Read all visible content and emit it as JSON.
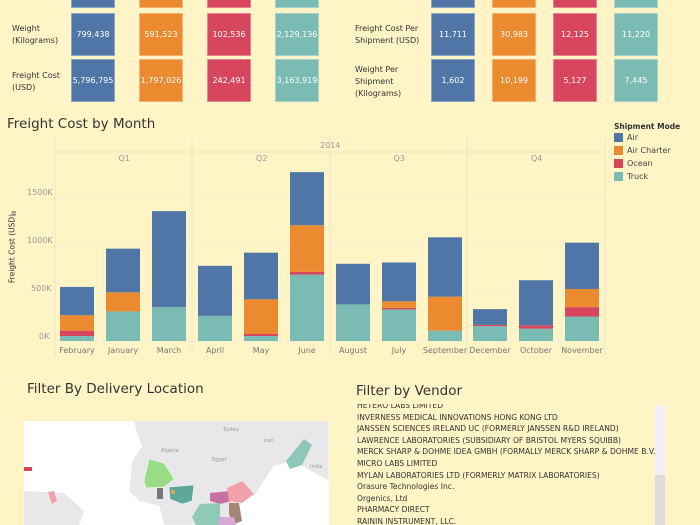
{
  "colors": {
    "Air": "#4F76A6",
    "Air Charter": "#EC8A30",
    "Ocean": "#D8465E",
    "Truck": "#7ABBB3",
    "background": "#FFF4C6"
  },
  "kpi_left": {
    "rows": [
      {
        "label": "Weight (Kilograms)",
        "values": [
          "799,438",
          "591,523",
          "102,536",
          "2,129,136"
        ]
      },
      {
        "label": "Freight Cost (USD)",
        "values": [
          "5,796,795",
          "1,797,026",
          "242,491",
          "3,163,919"
        ]
      }
    ]
  },
  "kpi_right": {
    "rows": [
      {
        "label": "Freight Cost Per Shipment (USD)",
        "values": [
          "11,711",
          "30,983",
          "12,125",
          "11,220"
        ]
      },
      {
        "label": "Weight Per Shipment (Kilograms)",
        "values": [
          "1,602",
          "10,199",
          "5,127",
          "7,445"
        ]
      }
    ]
  },
  "chart_data": {
    "type": "bar",
    "stacked": true,
    "title": "Freight Cost by Month",
    "year_label": "2014",
    "quarters": [
      "Q1",
      "Q2",
      "Q3",
      "Q4"
    ],
    "categories": [
      "February",
      "January",
      "March",
      "April",
      "May",
      "June",
      "August",
      "July",
      "September",
      "December",
      "October",
      "November"
    ],
    "ylabel": "Freight Cost (USD)",
    "yticks": [
      "0K",
      "500K",
      "1000K",
      "1500K"
    ],
    "ylim": [
      0,
      1850
    ],
    "unit": "K USD",
    "grid": true,
    "legend_title": "Shipment Mode",
    "legend_position": "right",
    "series": [
      {
        "name": "Truck",
        "values": [
          52,
          308,
          353,
          262,
          52,
          692,
          381,
          329,
          108,
          154,
          129,
          255
        ]
      },
      {
        "name": "Ocean",
        "values": [
          56,
          0,
          0,
          0,
          21,
          28,
          0,
          17,
          0,
          14,
          35,
          98
        ]
      },
      {
        "name": "Air Charter",
        "values": [
          161,
          199,
          0,
          0,
          361,
          486,
          0,
          67,
          354,
          0,
          0,
          189
        ]
      },
      {
        "name": "Air",
        "values": [
          294,
          455,
          1000,
          521,
          486,
          553,
          423,
          405,
          618,
          164,
          469,
          482
        ]
      }
    ],
    "legend": [
      "Air",
      "Air Charter",
      "Ocean",
      "Truck"
    ]
  },
  "map": {
    "title": "Filter By Delivery Location",
    "labels": [
      "Turkey",
      "Algeria",
      "Egypt",
      "Iran",
      "India"
    ]
  },
  "vendor_filter": {
    "title": "Filter by Vendor",
    "items": [
      "HETERO LABS LIMITED",
      "INVERNESS MEDICAL INNOVATIONS HONG KONG LTD",
      "JANSSEN SCIENCES IRELAND UC (FORMERLY JANSSEN R&D IRELAND)",
      "LAWRENCE LABORATORIES (SUBSIDIARY OF BRISTOL MYERS SQUIBB)",
      "MERCK SHARP & DOHME IDEA GMBH (FORMALLY MERCK SHARP & DOHME B.V.)",
      "MICRO LABS LIMITED",
      "MYLAN LABORATORIES LTD (FORMERLY MATRIX LABORATORIES)",
      "Orasure Technologies Inc.",
      "Orgenics, Ltd",
      "PHARMACY DIRECT",
      "RAININ INSTRUMENT, LLC."
    ]
  }
}
